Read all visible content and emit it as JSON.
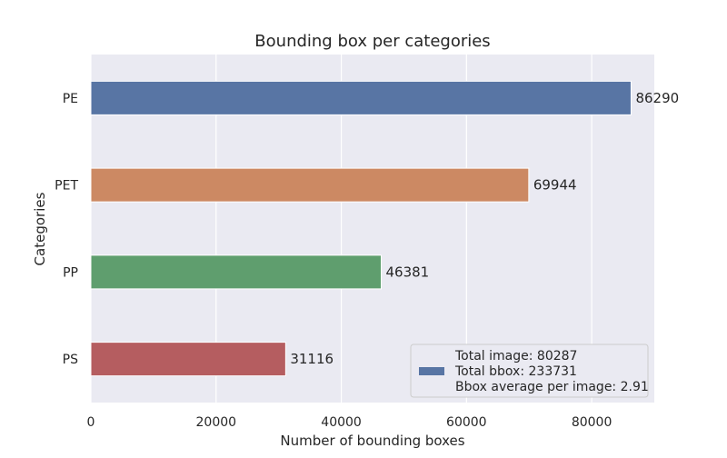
{
  "chart_data": {
    "type": "bar",
    "orientation": "horizontal",
    "title": "Bounding box per categories",
    "xlabel": "Number of bounding boxes",
    "ylabel": "Categories",
    "categories": [
      "PE",
      "PET",
      "PP",
      "PS"
    ],
    "values": [
      86290,
      69944,
      46381,
      31116
    ],
    "data_labels": [
      "86290",
      "69944",
      "46381",
      "31116"
    ],
    "colors": [
      "#5875a4",
      "#cc8963",
      "#5f9e6e",
      "#b55d60"
    ],
    "xlim": [
      0,
      90000
    ],
    "xticks": [
      0,
      20000,
      40000,
      60000,
      80000
    ],
    "xtick_labels": [
      "0",
      "20000",
      "40000",
      "60000",
      "80000"
    ],
    "grid": true,
    "background": "#eaeaf2",
    "legend": {
      "placement": "lower-right",
      "swatch_color": "#5875a4",
      "lines": [
        "Total image: 80287",
        "Total bbox: 233731",
        "Bbox average per image: 2.91"
      ]
    }
  }
}
